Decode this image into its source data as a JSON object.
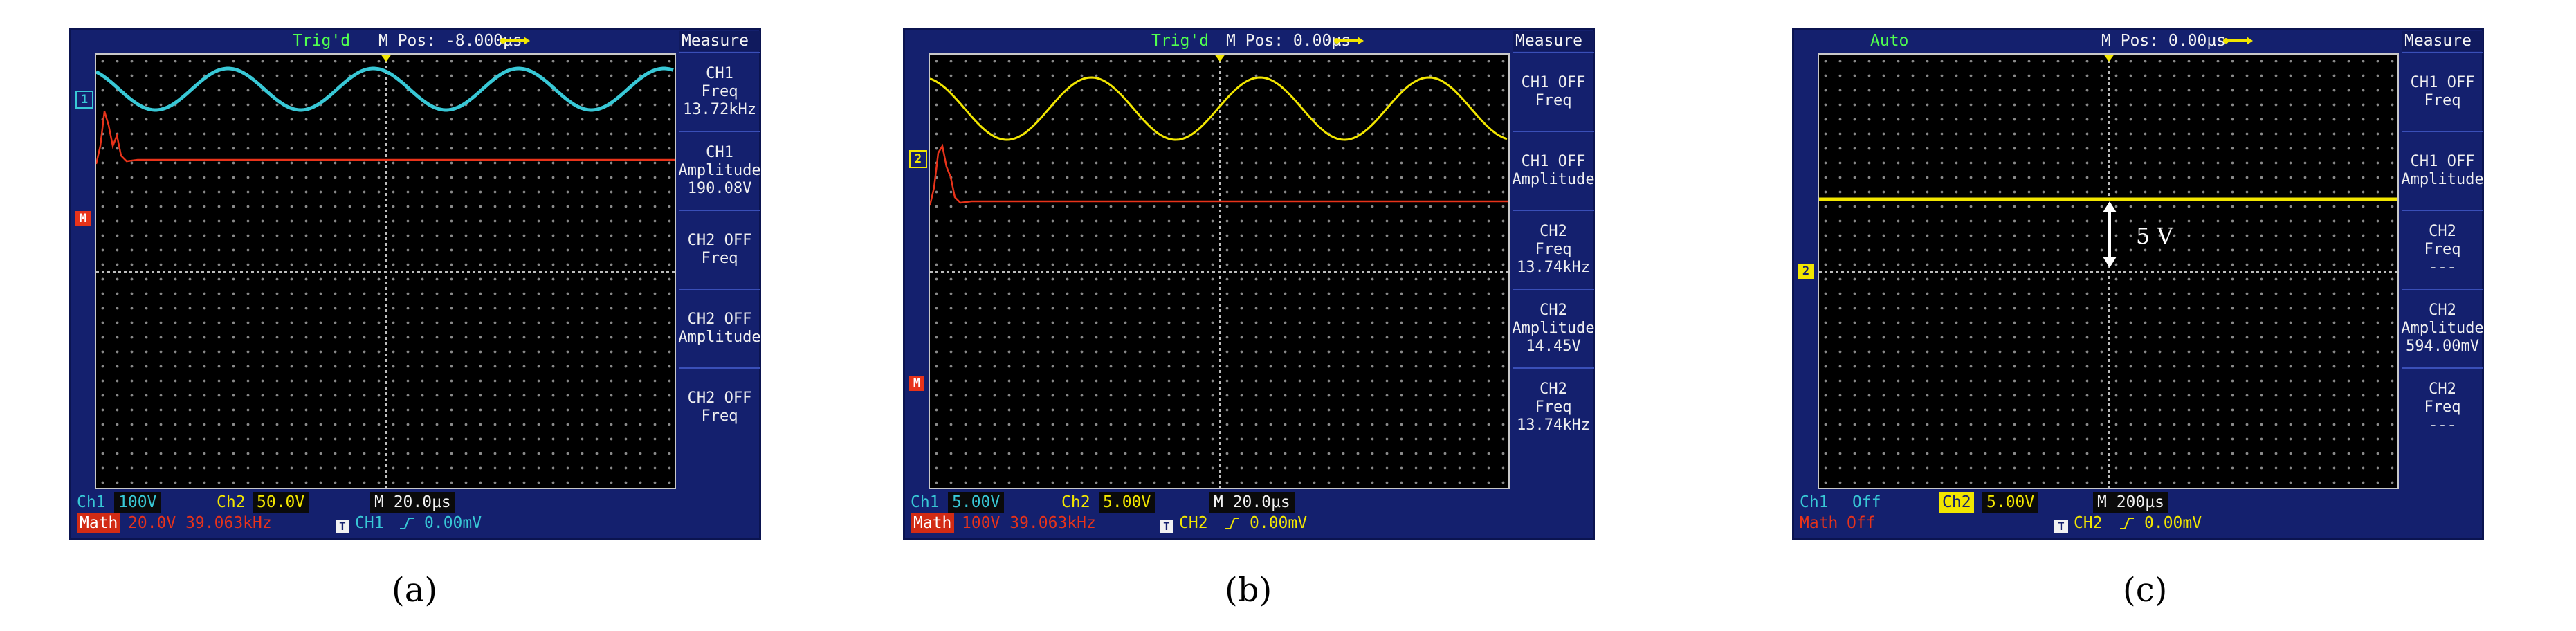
{
  "colors": {
    "ch1": "#38c8d6",
    "ch2": "#f2e600",
    "math": "#e8331a",
    "status": "#50ff50",
    "screen_bg": "#14206e"
  },
  "panels": [
    {
      "status": "Trig'd",
      "mpos": "M Pos: -8.000µs",
      "measure_title": "Measure",
      "measures": [
        {
          "ch": "CH1",
          "label": "Freq",
          "value": "13.72kHz"
        },
        {
          "ch": "CH1",
          "label": "Amplitude",
          "value": "190.08V"
        },
        {
          "ch": "CH2  OFF",
          "label": "Freq",
          "value": ""
        },
        {
          "ch": "CH2  OFF",
          "label": "Amplitude",
          "value": ""
        },
        {
          "ch": "CH2  OFF",
          "label": "Freq",
          "value": ""
        }
      ],
      "ch_labels": {
        "ch1": "1",
        "math": "M"
      },
      "bottom": {
        "ch1_label": "Ch1",
        "ch1_val": "100V",
        "ch2_label": "Ch2",
        "ch2_val": "50.0V",
        "time": "M 20.0µs",
        "math_label": "Math",
        "math_val": "20.0V 39.063kHz",
        "trig_icon": "T",
        "trig_ch": "CH1",
        "trig_level": "0.00mV"
      },
      "caption": "(a)"
    },
    {
      "status": "Trig'd",
      "mpos": "M Pos: 0.00µs",
      "measure_title": "Measure",
      "measures": [
        {
          "ch": "CH1  OFF",
          "label": "Freq",
          "value": ""
        },
        {
          "ch": "CH1  OFF",
          "label": "Amplitude",
          "value": ""
        },
        {
          "ch": "CH2",
          "label": "Freq",
          "value": "13.74kHz"
        },
        {
          "ch": "CH2",
          "label": "Amplitude",
          "value": "14.45V"
        },
        {
          "ch": "CH2",
          "label": "Freq",
          "value": "13.74kHz"
        }
      ],
      "ch_labels": {
        "ch2": "2",
        "math": "M"
      },
      "bottom": {
        "ch1_label": "Ch1",
        "ch1_val": "5.00V",
        "ch2_label": "Ch2",
        "ch2_val": "5.00V",
        "time": "M 20.0µs",
        "math_label": "Math",
        "math_val": "100V 39.063kHz",
        "trig_icon": "T",
        "trig_ch": "CH2",
        "trig_level": "0.00mV"
      },
      "caption": "(b)"
    },
    {
      "status": "Auto",
      "mpos": "M Pos: 0.00µs",
      "measure_title": "Measure",
      "measures": [
        {
          "ch": "CH1  OFF",
          "label": "Freq",
          "value": ""
        },
        {
          "ch": "CH1  OFF",
          "label": "Amplitude",
          "value": ""
        },
        {
          "ch": "CH2",
          "label": "Freq",
          "value": "---"
        },
        {
          "ch": "CH2",
          "label": "Amplitude",
          "value": "594.00mV"
        },
        {
          "ch": "CH2",
          "label": "Freq",
          "value": "---"
        }
      ],
      "ch_labels": {
        "ch2": "2"
      },
      "annotation": "5 V",
      "bottom": {
        "ch1_label": "Ch1",
        "ch1_val": "Off",
        "ch2_label": "Ch2",
        "ch2_val": "5.00V",
        "time": "M 200µs",
        "math_label": "Math",
        "math_val": "Off",
        "trig_icon": "T",
        "trig_ch": "CH2",
        "trig_level": "0.00mV"
      },
      "caption": "(c)"
    }
  ]
}
